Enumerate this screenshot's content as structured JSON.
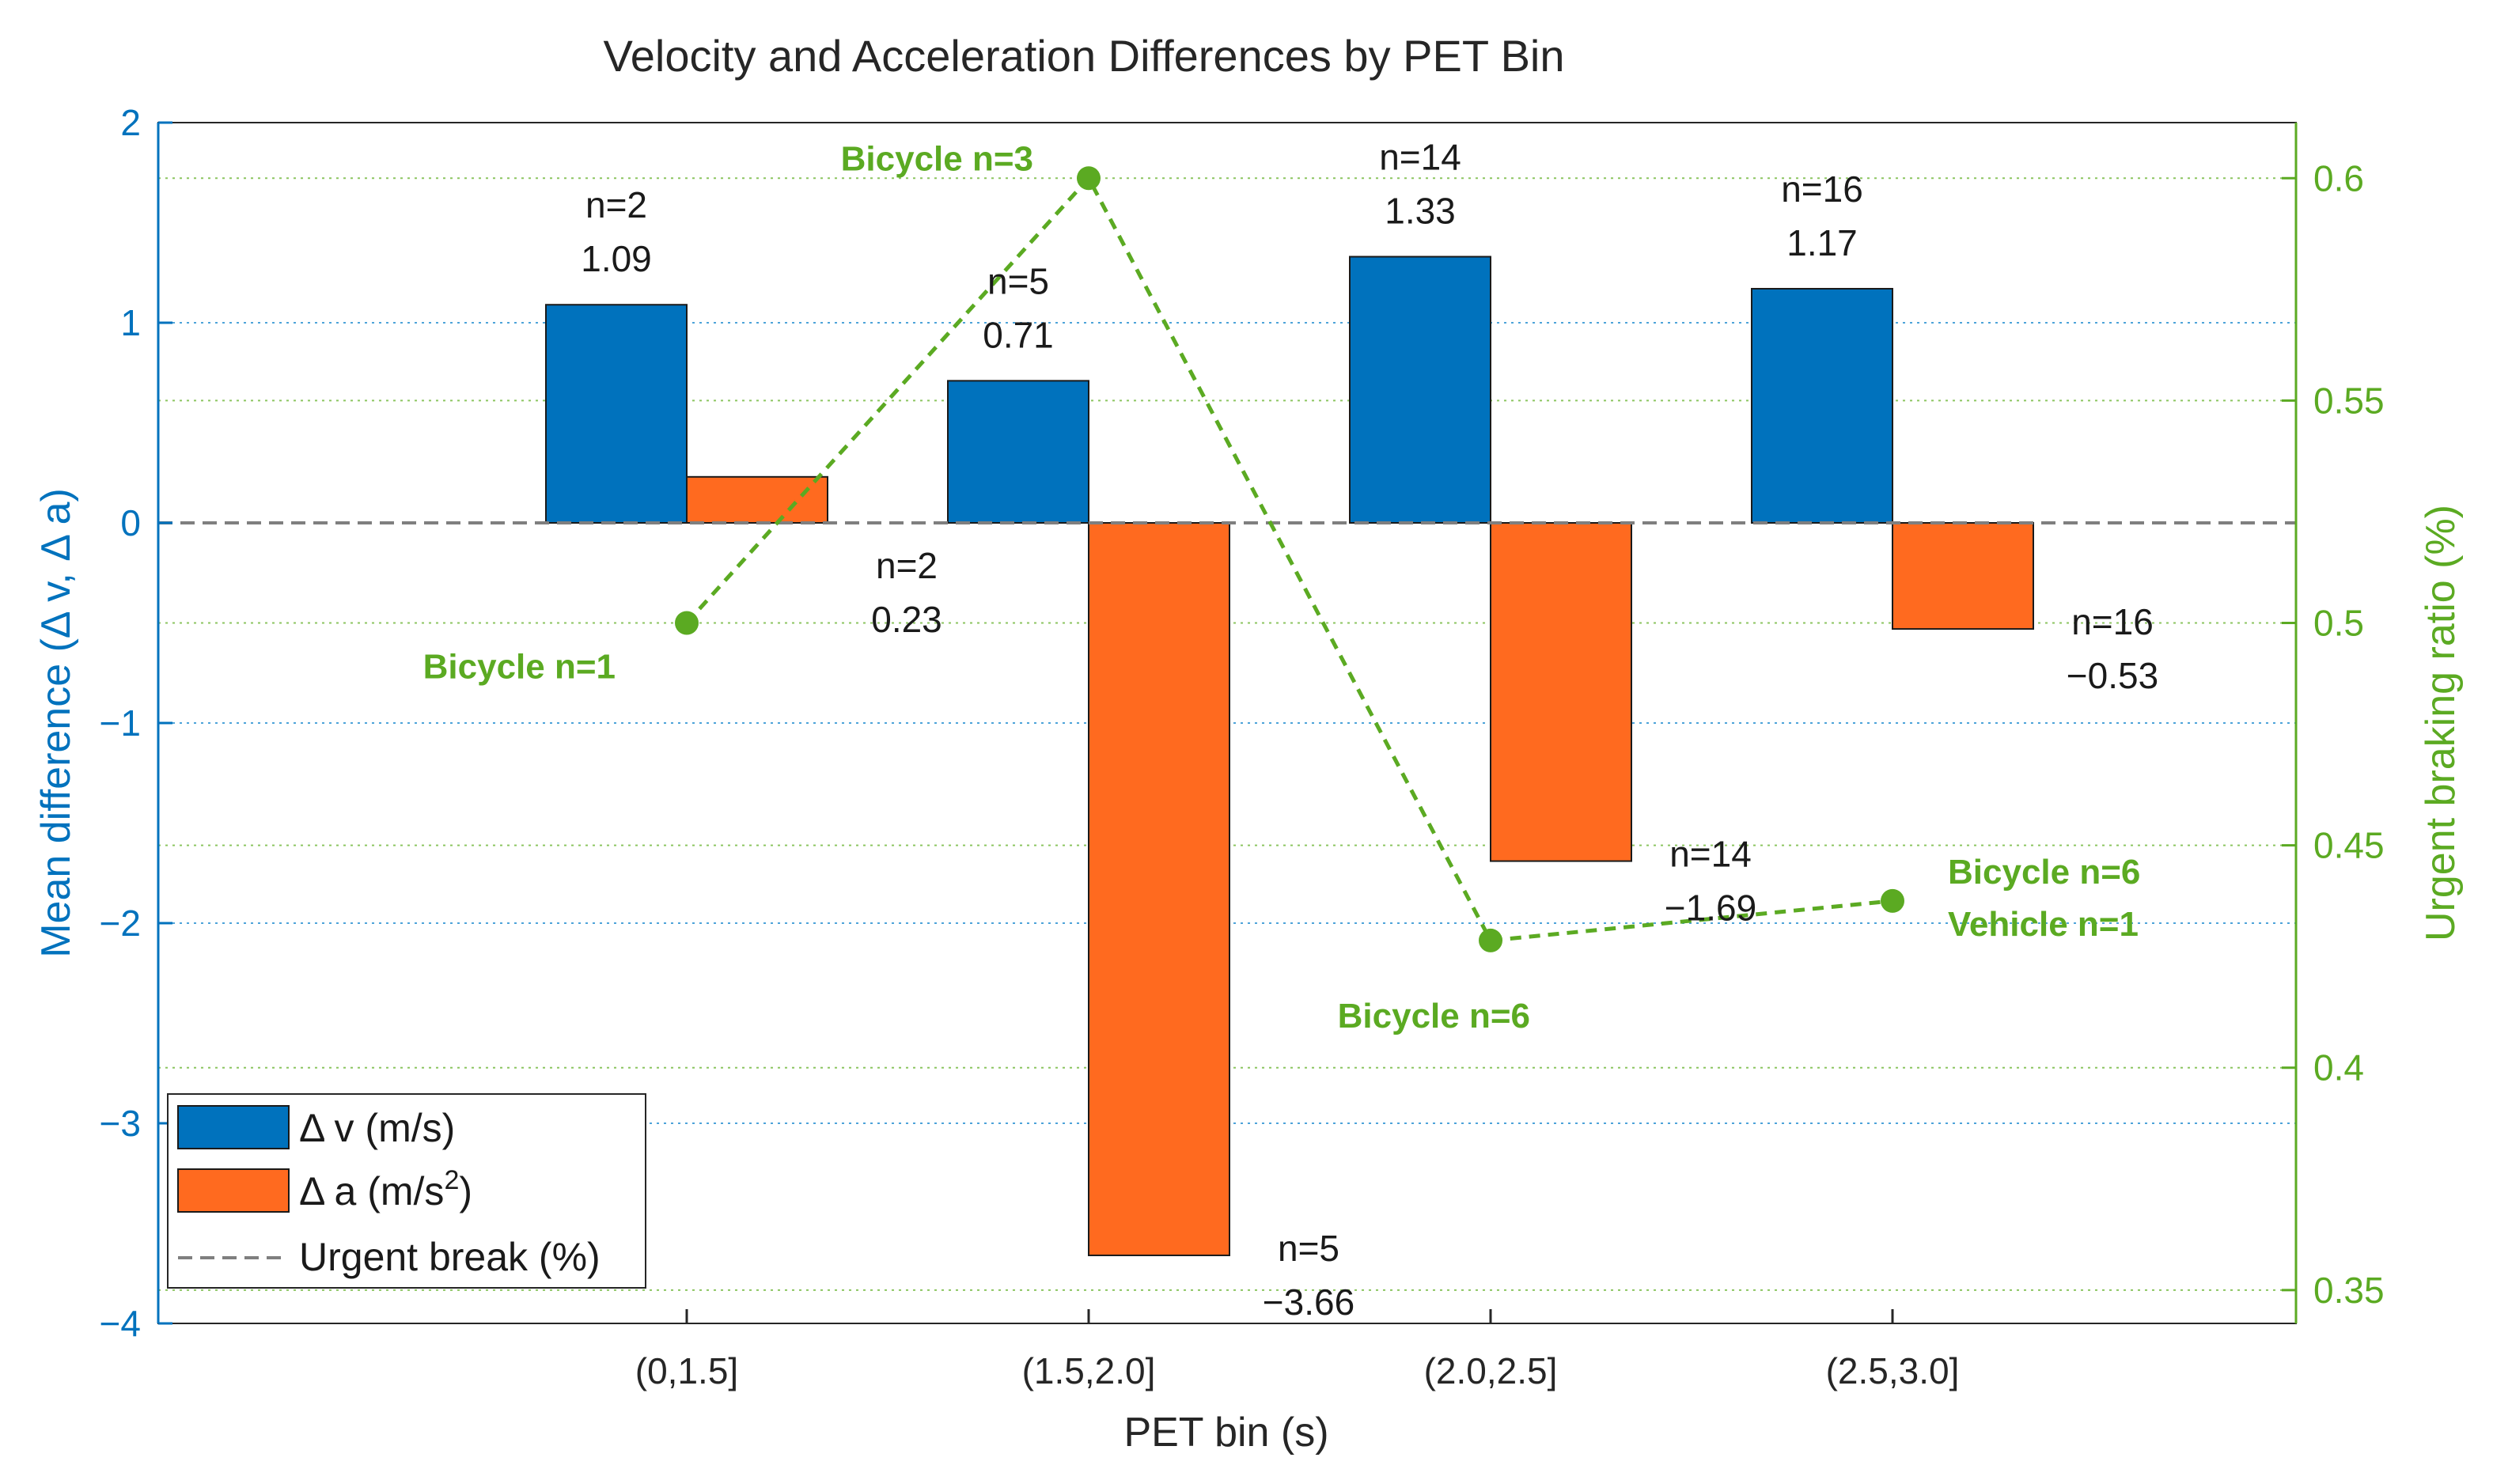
{
  "chart_data": {
    "type": "bar",
    "title": "Velocity and Acceleration Differences by PET Bin",
    "xlabel": "PET bin (s)",
    "ylabel": "Mean difference (Δ v, Δ a)",
    "y2label": "Urgent braking ratio (%)",
    "categories": [
      "(0,1.5]",
      "(1.5,2.0]",
      "(2.0,2.5]",
      "(2.5,3.0]"
    ],
    "ylim": [
      -4,
      2
    ],
    "yticks": [
      "−4",
      "−3",
      "−2",
      "−1",
      "0",
      "1",
      "2"
    ],
    "y2lim": [
      0.3425,
      0.6125
    ],
    "y2ticks": [
      "0.35",
      "0.4",
      "0.45",
      "0.5",
      "0.55",
      "0.6"
    ],
    "series": [
      {
        "name": "Δ v (m/s)",
        "kind": "bar",
        "color": "#0072BD",
        "values": [
          1.09,
          0.71,
          1.33,
          1.17
        ],
        "value_labels": [
          "1.09",
          "0.71",
          "1.33",
          "1.17"
        ],
        "n_labels": [
          "n=2",
          "n=5",
          "n=14",
          "n=16"
        ]
      },
      {
        "name": "Δ a (m/s²)",
        "kind": "bar",
        "color": "#FF6A1F",
        "values": [
          0.23,
          -3.66,
          -1.69,
          -0.53
        ],
        "value_labels": [
          "0.23",
          "−3.66",
          "−1.69",
          "−0.53"
        ],
        "n_labels": [
          "n=2",
          "n=5",
          "n=14",
          "n=16"
        ]
      },
      {
        "name": "Urgent break (%)",
        "kind": "line",
        "axis": "right",
        "color": "#5BAA22",
        "values": [
          0.5,
          0.6,
          0.4286,
          0.4375
        ],
        "annotations": [
          [
            "Bicycle n=1"
          ],
          [
            "Bicycle n=3"
          ],
          [
            "Bicycle  n=6"
          ],
          [
            "Bicycle  n=6",
            "Vehicle  n=1"
          ]
        ]
      }
    ],
    "legend": {
      "position": "bottom-left",
      "items": [
        "Δ v (m/s)",
        "Δ a (m/s",
        "2",
        ")",
        "Urgent break (%)"
      ]
    },
    "grid": "horizontal dotted"
  }
}
